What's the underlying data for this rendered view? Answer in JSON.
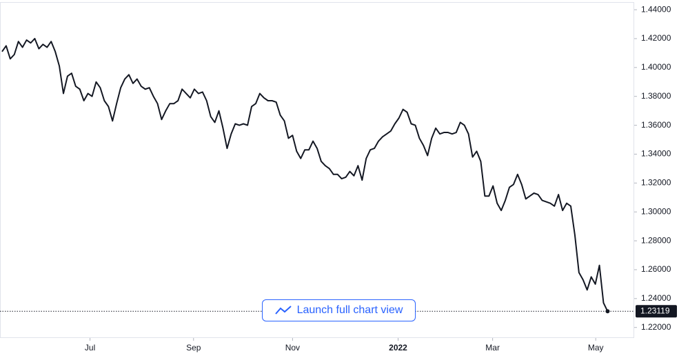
{
  "chart_data": {
    "type": "line",
    "series": [
      {
        "color": "#131722",
        "values": [
          1.411,
          1.415,
          1.406,
          1.409,
          1.418,
          1.414,
          1.419,
          1.417,
          1.42,
          1.413,
          1.416,
          1.414,
          1.418,
          1.411,
          1.401,
          1.382,
          1.394,
          1.396,
          1.387,
          1.385,
          1.377,
          1.382,
          1.38,
          1.39,
          1.386,
          1.377,
          1.373,
          1.363,
          1.375,
          1.386,
          1.392,
          1.395,
          1.389,
          1.392,
          1.387,
          1.385,
          1.386,
          1.38,
          1.375,
          1.364,
          1.37,
          1.375,
          1.375,
          1.377,
          1.385,
          1.382,
          1.379,
          1.385,
          1.382,
          1.383,
          1.377,
          1.366,
          1.362,
          1.37,
          1.358,
          1.344,
          1.354,
          1.361,
          1.36,
          1.361,
          1.36,
          1.373,
          1.375,
          1.382,
          1.379,
          1.377,
          1.377,
          1.376,
          1.367,
          1.363,
          1.351,
          1.353,
          1.342,
          1.337,
          1.343,
          1.343,
          1.349,
          1.344,
          1.335,
          1.332,
          1.33,
          1.326,
          1.326,
          1.323,
          1.324,
          1.328,
          1.325,
          1.332,
          1.322,
          1.337,
          1.343,
          1.344,
          1.349,
          1.352,
          1.354,
          1.356,
          1.361,
          1.365,
          1.371,
          1.369,
          1.361,
          1.36,
          1.351,
          1.346,
          1.339,
          1.351,
          1.358,
          1.354,
          1.355,
          1.355,
          1.354,
          1.355,
          1.362,
          1.36,
          1.354,
          1.338,
          1.342,
          1.335,
          1.311,
          1.311,
          1.318,
          1.306,
          1.301,
          1.308,
          1.317,
          1.319,
          1.326,
          1.319,
          1.309,
          1.311,
          1.313,
          1.312,
          1.308,
          1.307,
          1.306,
          1.304,
          1.312,
          1.301,
          1.306,
          1.304,
          1.284,
          1.258,
          1.253,
          1.246,
          1.255,
          1.25,
          1.263,
          1.237,
          1.23119
        ]
      }
    ],
    "xlim": [
      -0.5,
      154.5
    ],
    "xticks": [
      {
        "value": 21.5,
        "label": "Jul"
      },
      {
        "value": 46.8,
        "label": "Sep"
      },
      {
        "value": 71.0,
        "label": "Nov"
      },
      {
        "value": 96.8,
        "label": "2022"
      },
      {
        "value": 119.9,
        "label": "Mar"
      },
      {
        "value": 145.1,
        "label": "May"
      }
    ],
    "ylim": [
      1.2127,
      1.4453
    ],
    "yticks": [
      {
        "value": 1.22,
        "label": "1.22000"
      },
      {
        "value": 1.24,
        "label": "1.24000"
      },
      {
        "value": 1.26,
        "label": "1.26000"
      },
      {
        "value": 1.28,
        "label": "1.28000"
      },
      {
        "value": 1.3,
        "label": "1.30000"
      },
      {
        "value": 1.32,
        "label": "1.32000"
      },
      {
        "value": 1.34,
        "label": "1.34000"
      },
      {
        "value": 1.36,
        "label": "1.36000"
      },
      {
        "value": 1.38,
        "label": "1.38000"
      },
      {
        "value": 1.4,
        "label": "1.40000"
      },
      {
        "value": 1.42,
        "label": "1.42000"
      },
      {
        "value": 1.44,
        "label": "1.44000"
      }
    ]
  },
  "button": {
    "label": "Launch full chart view"
  }
}
